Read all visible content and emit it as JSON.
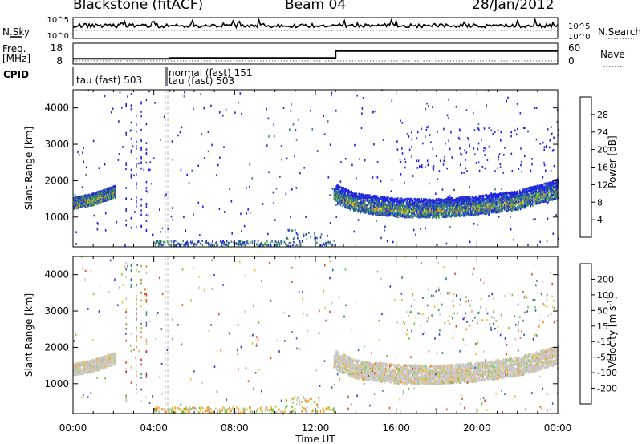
{
  "header": {
    "station": "Blackstone (fitACF)",
    "beam": "Beam 04",
    "date": "28/Jan/2012"
  },
  "chart_data": [
    {
      "type": "line",
      "panel": "noise",
      "left_label": "N.Sky",
      "right_label": "N.Search",
      "left_ticks": [
        "10^5",
        "10^0"
      ],
      "right_ticks": [
        "10^5",
        "10^0"
      ],
      "x": [
        0,
        24
      ],
      "note_level": "near 10^4 throughout"
    },
    {
      "type": "line",
      "panel": "frequency",
      "left_label": "Freq.",
      "left_unit": "[MHz]",
      "right_label": "Nave",
      "left_ticks": [
        "18",
        "8"
      ],
      "right_ticks": [
        "60",
        "0"
      ],
      "series": [
        {
          "name": "",
          "x": [
            0,
            4.8,
            4.8,
            13.0,
            13.0,
            14.8,
            14.8,
            24
          ],
          "values": [
            10.2,
            10.2,
            10.6,
            10.6,
            14.5,
            14.5,
            14.5,
            14.5
          ]
        }
      ]
    },
    {
      "type": "table",
      "panel": "cpid",
      "label": "CPID",
      "entries": [
        {
          "start": 0,
          "text": "tau (fast) 503"
        },
        {
          "start": 4.75,
          "text": "normal (fast) 151"
        },
        {
          "start": 4.75,
          "text": "tau (fast) 503"
        }
      ]
    },
    {
      "type": "heatmap",
      "panel": "power",
      "ylabel": "Slant Range [km]",
      "yticks": [
        1000,
        2000,
        3000,
        4000
      ],
      "ylim": [
        180,
        4500
      ],
      "colorbar_label": "Power [dB]",
      "colorbar_ticks": [
        4,
        8,
        12,
        16,
        20,
        24,
        28
      ],
      "colorbar_range": [
        0,
        32
      ],
      "colors": [
        "#1d22e6",
        "#233ab8",
        "#3a6fa0",
        "#3d8a66",
        "#40a040",
        "#8bc43c",
        "#e6b81c",
        "#f08a1c",
        "#e8441a",
        "#d81818"
      ],
      "echo_band": [
        {
          "t": 0,
          "r": 1330
        },
        {
          "t": 1,
          "r": 1440
        },
        {
          "t": 2,
          "r": 1640
        },
        {
          "t": 13,
          "r": 1560
        },
        {
          "t": 14,
          "r": 1310
        },
        {
          "t": 16,
          "r": 1180
        },
        {
          "t": 18,
          "r": 1160
        },
        {
          "t": 20,
          "r": 1240
        },
        {
          "t": 22,
          "r": 1380
        },
        {
          "t": 24,
          "r": 1700
        }
      ]
    },
    {
      "type": "heatmap",
      "panel": "velocity",
      "ylabel": "Slant Range [km]",
      "yticks": [
        1000,
        2000,
        3000,
        4000
      ],
      "ylim": [
        180,
        4500
      ],
      "xlabel": "Time UT",
      "xticks": [
        "00:00",
        "04:00",
        "08:00",
        "12:00",
        "16:00",
        "20:00",
        "00:00"
      ],
      "colorbar_label": "Velocity [m s^-1]",
      "colorbar_ticks": [
        "200",
        "100",
        "50",
        "15",
        "-15",
        "-50",
        "-100",
        "-200"
      ],
      "colors": [
        "#2b3fd6",
        "#2f6ea8",
        "#3a9a60",
        "#6cc83a",
        "#c8c8c8",
        "#f0c030",
        "#f08a1c",
        "#e84a1a",
        "#e01818"
      ]
    }
  ]
}
